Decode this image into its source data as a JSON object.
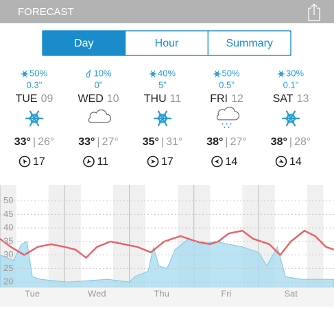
{
  "header": {
    "title": "FORECAST"
  },
  "tabs": {
    "items": [
      "Day",
      "Hour",
      "Summary"
    ],
    "selected": 0
  },
  "days": [
    {
      "precip": "50%",
      "precip_icon": "snow",
      "amount": "0.3\"",
      "day": "TUE",
      "date": "09",
      "icon": "snow",
      "high": "33°",
      "low": "26°",
      "wind": "17",
      "wind_dir": 150
    },
    {
      "precip": "10%",
      "precip_icon": "rain",
      "amount": "0\"",
      "day": "WED",
      "date": "10",
      "icon": "cloud",
      "high": "33°",
      "low": "27°",
      "wind": "11",
      "wind_dir": 45
    },
    {
      "precip": "40%",
      "precip_icon": "snow",
      "amount": "5\"",
      "day": "THU",
      "date": "11",
      "icon": "snow",
      "high": "35°",
      "low": "31°",
      "wind": "17",
      "wind_dir": 270
    },
    {
      "precip": "50%",
      "precip_icon": "snow",
      "amount": "0.5\"",
      "day": "FRI",
      "date": "12",
      "icon": "cloud-snow",
      "high": "38°",
      "low": "27°",
      "wind": "14",
      "wind_dir": 90
    },
    {
      "precip": "30%",
      "precip_icon": "snow",
      "amount": "0.1\"",
      "day": "SAT",
      "date": "13",
      "icon": "snow",
      "high": "38°",
      "low": "28°",
      "wind": "14",
      "wind_dir": 300
    }
  ],
  "chart_data": {
    "type": "line",
    "categories": [
      "Tue",
      "Wed",
      "Thu",
      "Fri",
      "Sat"
    ],
    "category_x": [
      12,
      36,
      60,
      84,
      108
    ],
    "xlim": [
      0,
      124
    ],
    "ylim": [
      18,
      56
    ],
    "yticks": [
      20,
      25,
      30,
      35,
      40,
      45,
      50
    ],
    "grid": true,
    "series": [
      {
        "color": "#a9dcf0",
        "fill": true,
        "x": [
          0,
          5,
          8,
          10,
          12,
          15,
          25,
          40,
          48,
          50,
          55,
          57,
          59,
          62,
          65,
          70,
          75,
          80,
          85,
          90,
          96,
          99,
          103,
          106,
          112,
          124
        ],
        "values": [
          30,
          28,
          34,
          35,
          22,
          21,
          20,
          21,
          20,
          22,
          24,
          33,
          26,
          25,
          32,
          36,
          34,
          35,
          34,
          33,
          31,
          26,
          33,
          22,
          21,
          21
        ]
      },
      {
        "color": "#e8636a",
        "fill": false,
        "x": [
          0,
          4,
          9,
          14,
          19,
          24,
          28,
          32,
          36,
          41,
          46,
          51,
          56,
          61,
          67,
          73,
          78,
          81,
          85,
          90,
          94,
          100,
          104,
          108,
          113,
          117,
          121,
          124
        ],
        "values": [
          36,
          33,
          30,
          33,
          34,
          33,
          32,
          29,
          33,
          35,
          34,
          33,
          31,
          35,
          37,
          35,
          34,
          35,
          38,
          39,
          36,
          34,
          30,
          35,
          39,
          37,
          33,
          32
        ]
      }
    ]
  }
}
